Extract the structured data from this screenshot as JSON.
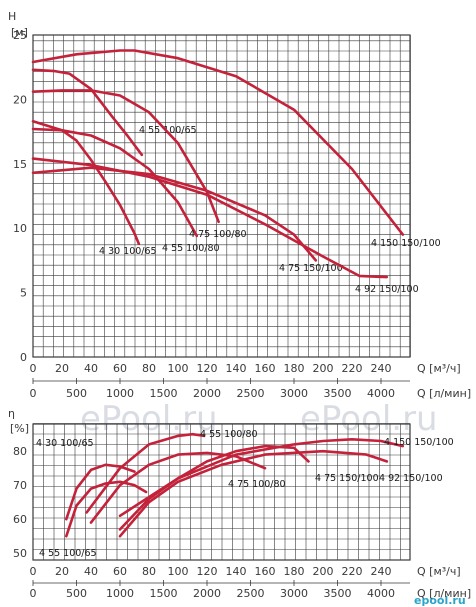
{
  "watermark": "ePool.ru",
  "brand": "epool.ru",
  "colors": {
    "curve": "#c3223a",
    "grid": "#3a3a3a"
  },
  "chart_data": [
    {
      "type": "line",
      "ylabel": "H",
      "yunit": "[м]",
      "x_m3h_label": "Q [м³/ч]",
      "x_lmin_label": "Q [л/мин]",
      "x_m3h_ticks": [
        "0",
        "20",
        "40",
        "60",
        "80",
        "100",
        "120",
        "140",
        "160",
        "180",
        "200",
        "220",
        "240"
      ],
      "x_lmin_ticks": [
        "0",
        "500",
        "1000",
        "1500",
        "2000",
        "2500",
        "3000",
        "3500",
        "4000"
      ],
      "y_ticks": [
        "0",
        "5",
        "10",
        "15",
        "20",
        "25"
      ],
      "xlim": [
        0,
        260
      ],
      "ylim": [
        0,
        25
      ],
      "grid": true,
      "series": [
        {
          "name": "4 55 100/65",
          "x": [
            0,
            15,
            25,
            40,
            55,
            65,
            75
          ],
          "y": [
            22.3,
            22.2,
            22.0,
            20.8,
            18.6,
            17.2,
            15.7
          ]
        },
        {
          "name": "4 30 100/65",
          "x": [
            0,
            20,
            30,
            40,
            50,
            60,
            70,
            73
          ],
          "y": [
            18.3,
            17.6,
            16.8,
            15.3,
            13.6,
            11.8,
            9.6,
            8.8
          ]
        },
        {
          "name": "4 55 100/80",
          "x": [
            0,
            20,
            40,
            60,
            80,
            100,
            113
          ],
          "y": [
            17.7,
            17.6,
            17.2,
            16.2,
            14.6,
            12.0,
            9.4
          ]
        },
        {
          "name": "4 75 100/80",
          "x": [
            0,
            20,
            40,
            60,
            80,
            100,
            120,
            128
          ],
          "y": [
            20.6,
            20.7,
            20.7,
            20.3,
            19.0,
            16.6,
            12.8,
            10.5
          ]
        },
        {
          "name": "4 75 150/100",
          "x": [
            0,
            40,
            80,
            120,
            160,
            180,
            195
          ],
          "y": [
            14.3,
            14.7,
            14.2,
            12.9,
            11.0,
            9.5,
            7.5
          ]
        },
        {
          "name": "4 92 150/100",
          "x": [
            0,
            40,
            80,
            120,
            160,
            200,
            225,
            244
          ],
          "y": [
            15.4,
            14.9,
            14.0,
            12.6,
            10.3,
            7.8,
            6.3,
            6.2
          ]
        },
        {
          "name": "4 150 150/100",
          "x": [
            0,
            30,
            60,
            70,
            100,
            140,
            180,
            220,
            255
          ],
          "y": [
            22.9,
            23.5,
            23.8,
            23.8,
            23.2,
            21.8,
            19.2,
            14.6,
            9.5
          ]
        }
      ]
    },
    {
      "type": "line",
      "ylabel": "η",
      "yunit": "[%]",
      "x_m3h_label": "Q [м³/ч]",
      "x_lmin_label": "Q [л/мин]",
      "x_m3h_ticks": [
        "0",
        "20",
        "40",
        "60",
        "80",
        "100",
        "120",
        "140",
        "160",
        "180",
        "200",
        "220",
        "240"
      ],
      "x_lmin_ticks": [
        "0",
        "500",
        "1000",
        "1500",
        "2000",
        "2500",
        "3000",
        "3500",
        "4000"
      ],
      "y_ticks": [
        "50",
        "60",
        "70",
        "80"
      ],
      "xlim": [
        0,
        260
      ],
      "ylim": [
        48,
        88
      ],
      "grid": true,
      "series": [
        {
          "name": "4 55 100/65",
          "x": [
            23,
            30,
            40,
            50,
            60,
            70,
            78
          ],
          "y": [
            55,
            64,
            69,
            70.5,
            71,
            70,
            68
          ]
        },
        {
          "name": "4 30 100/65",
          "x": [
            23,
            30,
            40,
            50,
            60,
            70
          ],
          "y": [
            60,
            69,
            74.5,
            76,
            75.5,
            74
          ]
        },
        {
          "name": "4 55 100/80",
          "x": [
            37,
            60,
            80,
            100,
            110,
            118
          ],
          "y": [
            62,
            75,
            82,
            84.5,
            85,
            84.5
          ]
        },
        {
          "name": "4 75 100/80",
          "x": [
            40,
            60,
            80,
            100,
            120,
            140,
            160
          ],
          "y": [
            59,
            70,
            76,
            79,
            79.5,
            78.5,
            75
          ]
        },
        {
          "name": "4 75 150/100",
          "x": [
            60,
            80,
            100,
            120,
            140,
            160,
            180,
            190
          ],
          "y": [
            57,
            66,
            72,
            77,
            80,
            81.5,
            81,
            77
          ]
        },
        {
          "name": "4 92 150/100",
          "x": [
            60,
            80,
            100,
            130,
            160,
            200,
            230,
            244
          ],
          "y": [
            55,
            65,
            71,
            76,
            79,
            80,
            79,
            77
          ]
        },
        {
          "name": "4 150 150/100",
          "x": [
            60,
            100,
            140,
            180,
            200,
            220,
            240,
            255
          ],
          "y": [
            61,
            72,
            79,
            82,
            83,
            83.5,
            83,
            81.5
          ]
        }
      ]
    }
  ]
}
